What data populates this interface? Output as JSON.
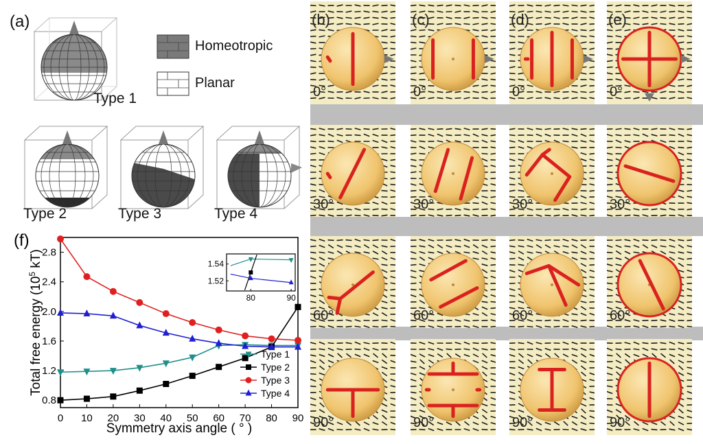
{
  "panel_a": {
    "label": "(a)",
    "types": [
      "Type 1",
      "Type 2",
      "Type 3",
      "Type 4"
    ],
    "legend": [
      {
        "label": "Homeotropic",
        "color": "#7a7a7a"
      },
      {
        "label": "Planar",
        "color": "#ffffff"
      }
    ]
  },
  "columns": [
    {
      "label": "(b)"
    },
    {
      "label": "(c)"
    },
    {
      "label": "(d)"
    },
    {
      "label": "(e)"
    }
  ],
  "angles": [
    "0°",
    "30°",
    "60°",
    "90°"
  ],
  "colors": {
    "background_cell": "#f4ecc3",
    "sphere": "#f0c46e",
    "defect": "#d9221f",
    "arrow": "#777777",
    "gap": "#bdbdbd"
  },
  "chart_data": {
    "type": "line",
    "panel_label": "(f)",
    "title": "",
    "xlabel": "Symmetry axis angle ( ° )",
    "ylabel": "Total free energy (10",
    "ylabel_sup": "5",
    "ylabel_unit": " kT)",
    "x": [
      0,
      10,
      20,
      30,
      40,
      50,
      60,
      70,
      80,
      90
    ],
    "xlim": [
      0,
      90
    ],
    "ylim": [
      0.7,
      3.0
    ],
    "xticks": [
      "0",
      "10",
      "20",
      "30",
      "40",
      "50",
      "60",
      "70",
      "80",
      "90"
    ],
    "yticks": [
      "0.8",
      "1.2",
      "1.6",
      "2.0",
      "2.4",
      "2.8"
    ],
    "ytick_values": [
      0.8,
      1.2,
      1.6,
      2.0,
      2.4,
      2.8
    ],
    "series": [
      {
        "name": "Type 1",
        "color": "#1f8f8a",
        "marker": "triangle-down",
        "values": [
          1.18,
          1.19,
          1.2,
          1.24,
          1.3,
          1.38,
          1.54,
          1.55,
          1.54,
          1.54
        ]
      },
      {
        "name": "Type 2",
        "color": "#000000",
        "marker": "square",
        "values": [
          0.8,
          0.82,
          0.85,
          0.93,
          1.02,
          1.13,
          1.25,
          1.37,
          1.52,
          2.06
        ]
      },
      {
        "name": "Type 3",
        "color": "#e02020",
        "marker": "circle",
        "values": [
          2.98,
          2.47,
          2.27,
          2.12,
          1.97,
          1.85,
          1.75,
          1.67,
          1.63,
          1.61
        ]
      },
      {
        "name": "Type 4",
        "color": "#1f1fd0",
        "marker": "triangle-up",
        "values": [
          1.98,
          1.97,
          1.94,
          1.81,
          1.71,
          1.63,
          1.57,
          1.53,
          1.52,
          1.52
        ]
      }
    ],
    "inset": {
      "xlim": [
        74,
        91
      ],
      "ylim": [
        1.508,
        1.552
      ],
      "xticks": [
        "80",
        "90"
      ],
      "xtick_values": [
        80,
        90
      ],
      "yticks": [
        "1.52",
        "1.54"
      ],
      "ytick_values": [
        1.52,
        1.54
      ],
      "series": [
        {
          "name": "Type 1",
          "x": [
            75,
            80,
            90
          ],
          "values": [
            1.538,
            1.546,
            1.545
          ]
        },
        {
          "name": "Type 2",
          "x": [
            78.5,
            80,
            81.5
          ],
          "values": [
            1.509,
            1.53,
            1.551
          ]
        },
        {
          "name": "Type 4",
          "x": [
            75,
            80,
            90
          ],
          "values": [
            1.528,
            1.523,
            1.518
          ]
        }
      ]
    },
    "legend_position": "bottom-right"
  }
}
